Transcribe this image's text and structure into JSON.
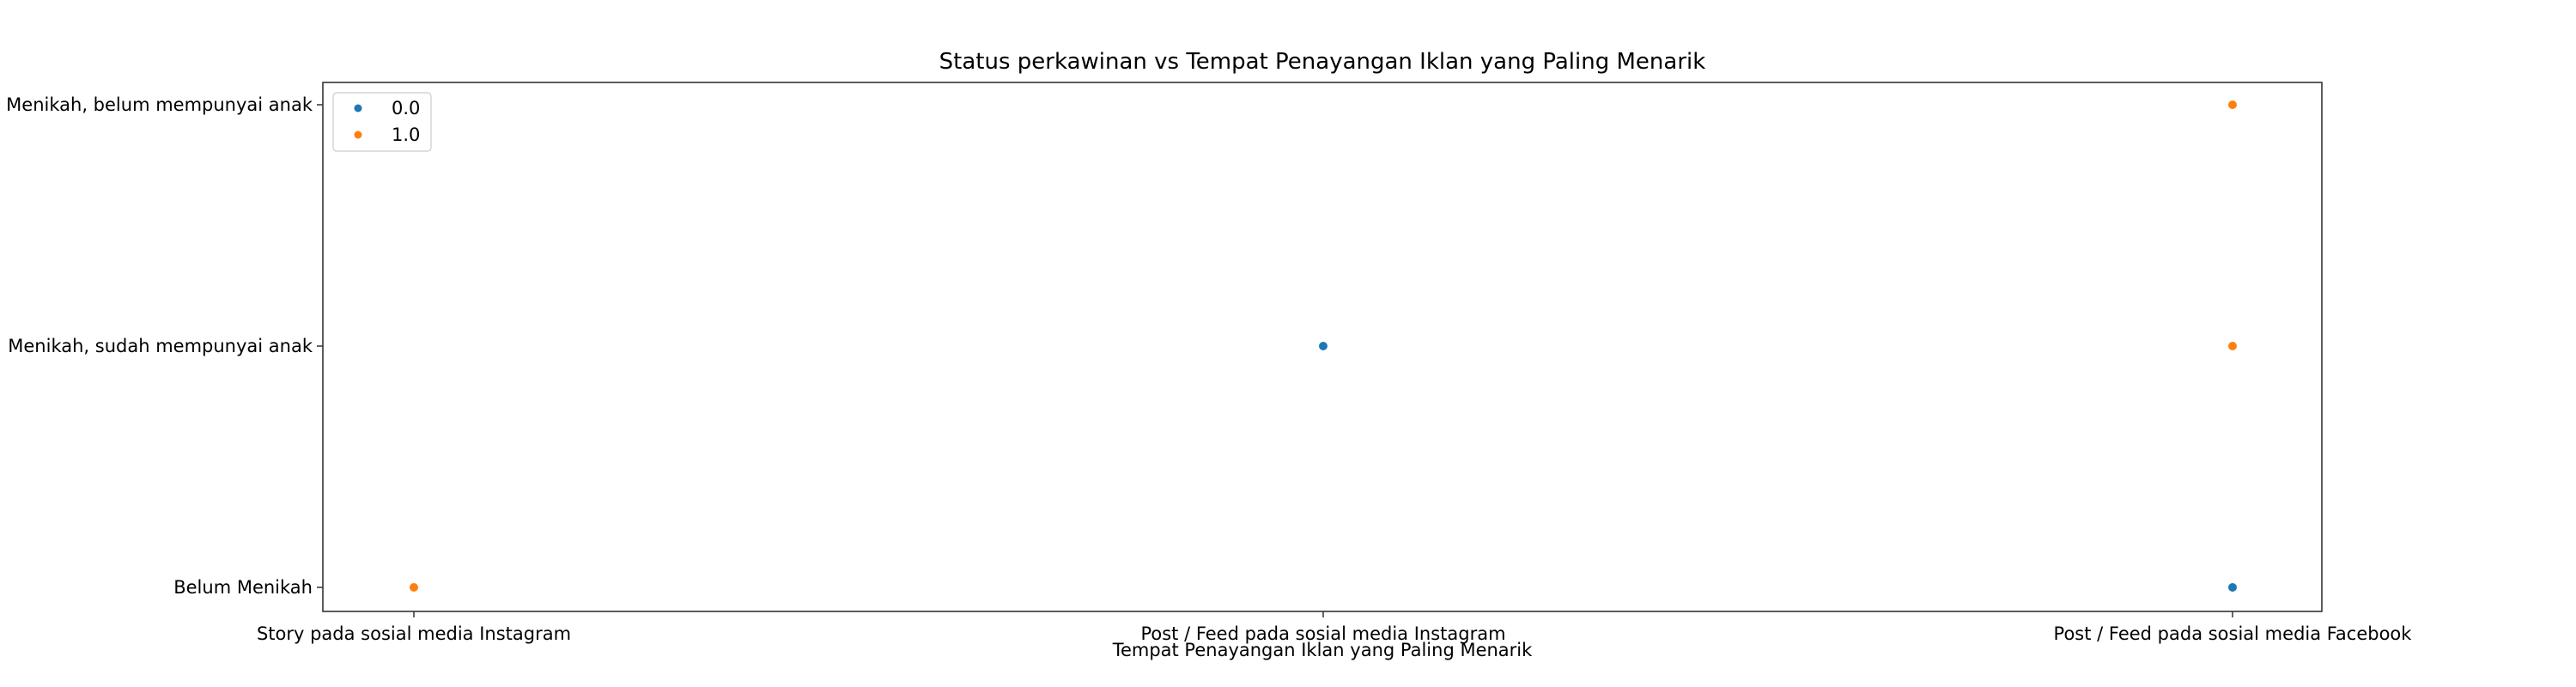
{
  "chart_data": {
    "type": "scatter",
    "title": "Status perkawinan vs Tempat Penayangan Iklan yang Paling Menarik",
    "xlabel": "Tempat Penayangan Iklan yang Paling Menarik",
    "ylabel": "",
    "x_categories": [
      "Story pada sosial media Instagram",
      "Post / Feed pada sosial media Instagram",
      "Post / Feed pada sosial media Facebook"
    ],
    "y_categories": [
      "Belum Menikah",
      "Menikah, sudah mempunyai anak",
      "Menikah, belum mempunyai anak"
    ],
    "series": [
      {
        "name": "0.0",
        "color": "#1f77b4",
        "points": [
          {
            "x": "Post / Feed pada sosial media Instagram",
            "y": "Menikah, sudah mempunyai anak"
          },
          {
            "x": "Post / Feed pada sosial media Facebook",
            "y": "Belum Menikah"
          }
        ]
      },
      {
        "name": "1.0",
        "color": "#ff7f0e",
        "points": [
          {
            "x": "Story pada sosial media Instagram",
            "y": "Belum Menikah"
          },
          {
            "x": "Post / Feed pada sosial media Facebook",
            "y": "Menikah, belum mempunyai anak"
          },
          {
            "x": "Post / Feed pada sosial media Facebook",
            "y": "Menikah, sudah mempunyai anak"
          }
        ]
      }
    ],
    "legend": "top-left",
    "grid": false
  }
}
